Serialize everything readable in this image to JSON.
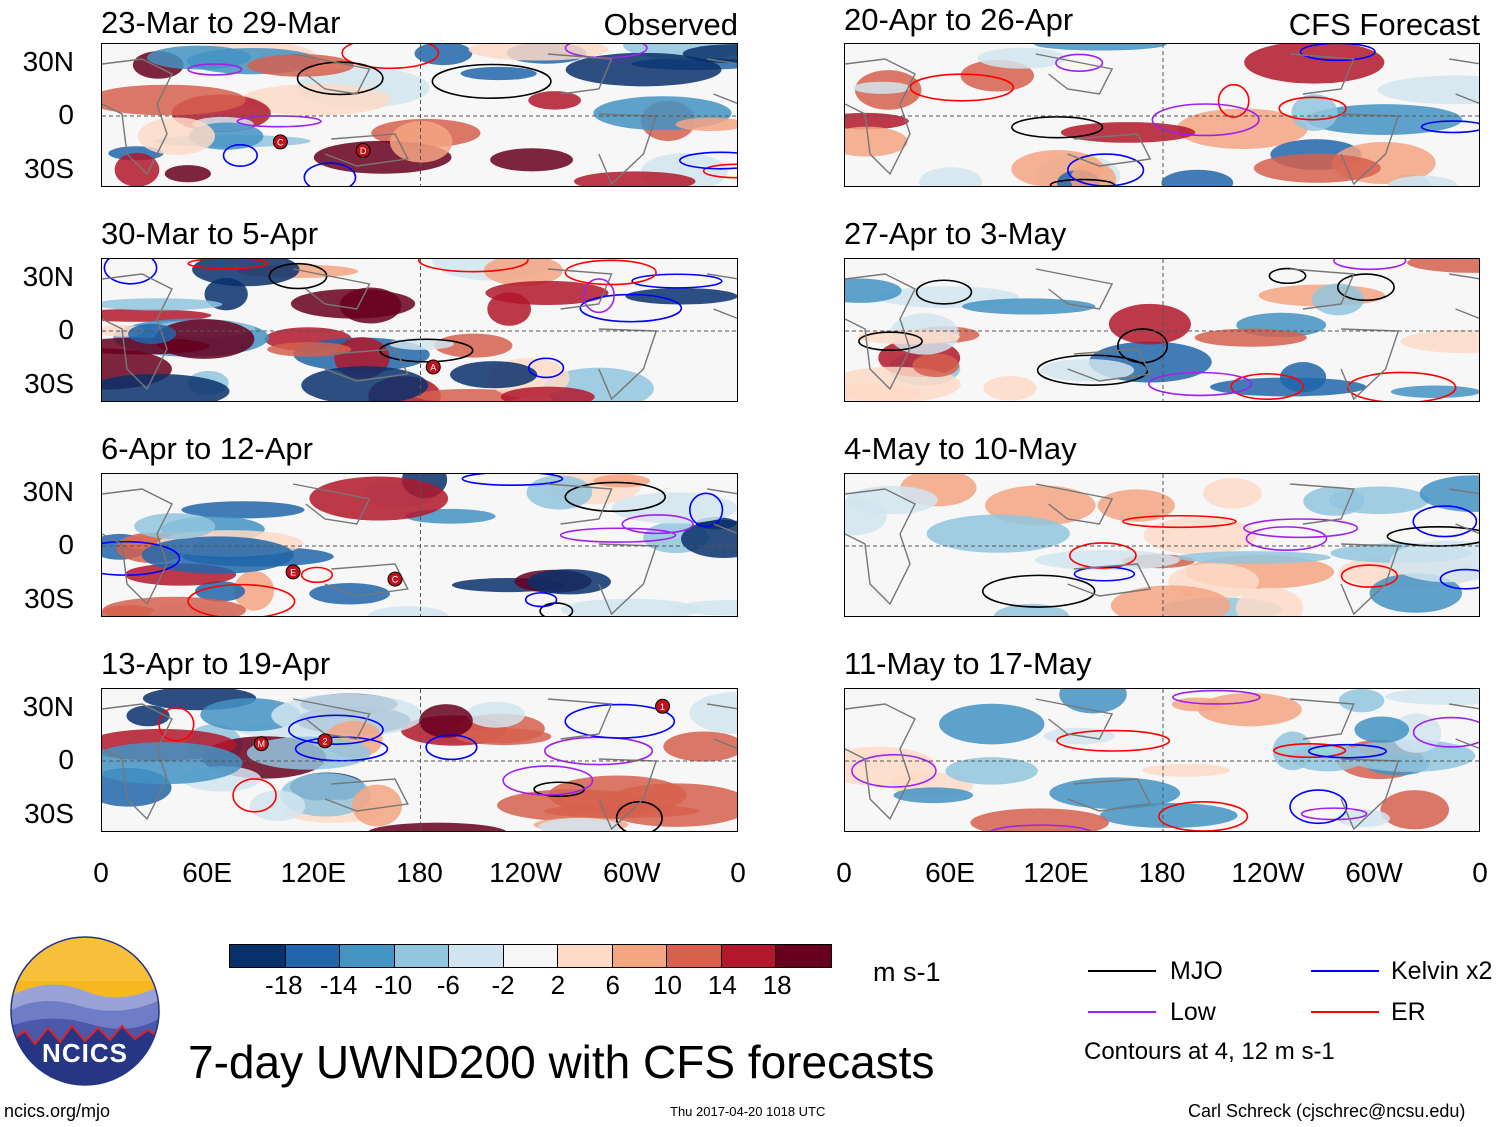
{
  "panels": {
    "left": [
      {
        "title": "23-Mar to 29-Mar",
        "label": "Observed",
        "markers": [
          "C",
          "D"
        ]
      },
      {
        "title": "30-Mar to 5-Apr",
        "label": "",
        "markers": [
          "A"
        ]
      },
      {
        "title": "6-Apr to 12-Apr",
        "label": "",
        "markers": [
          "E",
          "C"
        ]
      },
      {
        "title": "13-Apr to 19-Apr",
        "label": "",
        "markers": [
          "M",
          "2",
          "1"
        ]
      }
    ],
    "right": [
      {
        "title": "20-Apr to 26-Apr",
        "label": "CFS Forecast"
      },
      {
        "title": "27-Apr to 3-May",
        "label": ""
      },
      {
        "title": "4-May to 10-May",
        "label": ""
      },
      {
        "title": "11-May to 17-May",
        "label": ""
      }
    ]
  },
  "lat_labels": [
    "30N",
    "0",
    "30S"
  ],
  "lon_labels": [
    "0",
    "60E",
    "120E",
    "180",
    "120W",
    "60W",
    "0"
  ],
  "colorbar": {
    "colors": [
      "#08306b",
      "#2166ac",
      "#4393c3",
      "#92c5de",
      "#d1e5f0",
      "#f7f7f7",
      "#fddbc7",
      "#f4a582",
      "#d6604d",
      "#b2182b",
      "#67001f"
    ],
    "ticks": [
      "-18",
      "-14",
      "-10",
      "-6",
      "-2",
      "2",
      "6",
      "10",
      "14",
      "18"
    ],
    "units": "m s-1"
  },
  "legend": {
    "items": [
      {
        "name": "MJO",
        "color": "#000000"
      },
      {
        "name": "Kelvin x2",
        "color": "#0000ff"
      },
      {
        "name": "Low",
        "color": "#a020f0"
      },
      {
        "name": "ER",
        "color": "#ff0000"
      }
    ],
    "contours_note": "Contours at 4, 12 m s-1"
  },
  "logo": {
    "text": "NCICS"
  },
  "main_title": "7-day UWND200 with CFS forecasts",
  "footer": {
    "url": "ncics.org/mjo",
    "timestamp": "Thu 2017-04-20 1018 UTC",
    "author": "Carl Schreck (cjschrec@ncsu.edu)"
  }
}
